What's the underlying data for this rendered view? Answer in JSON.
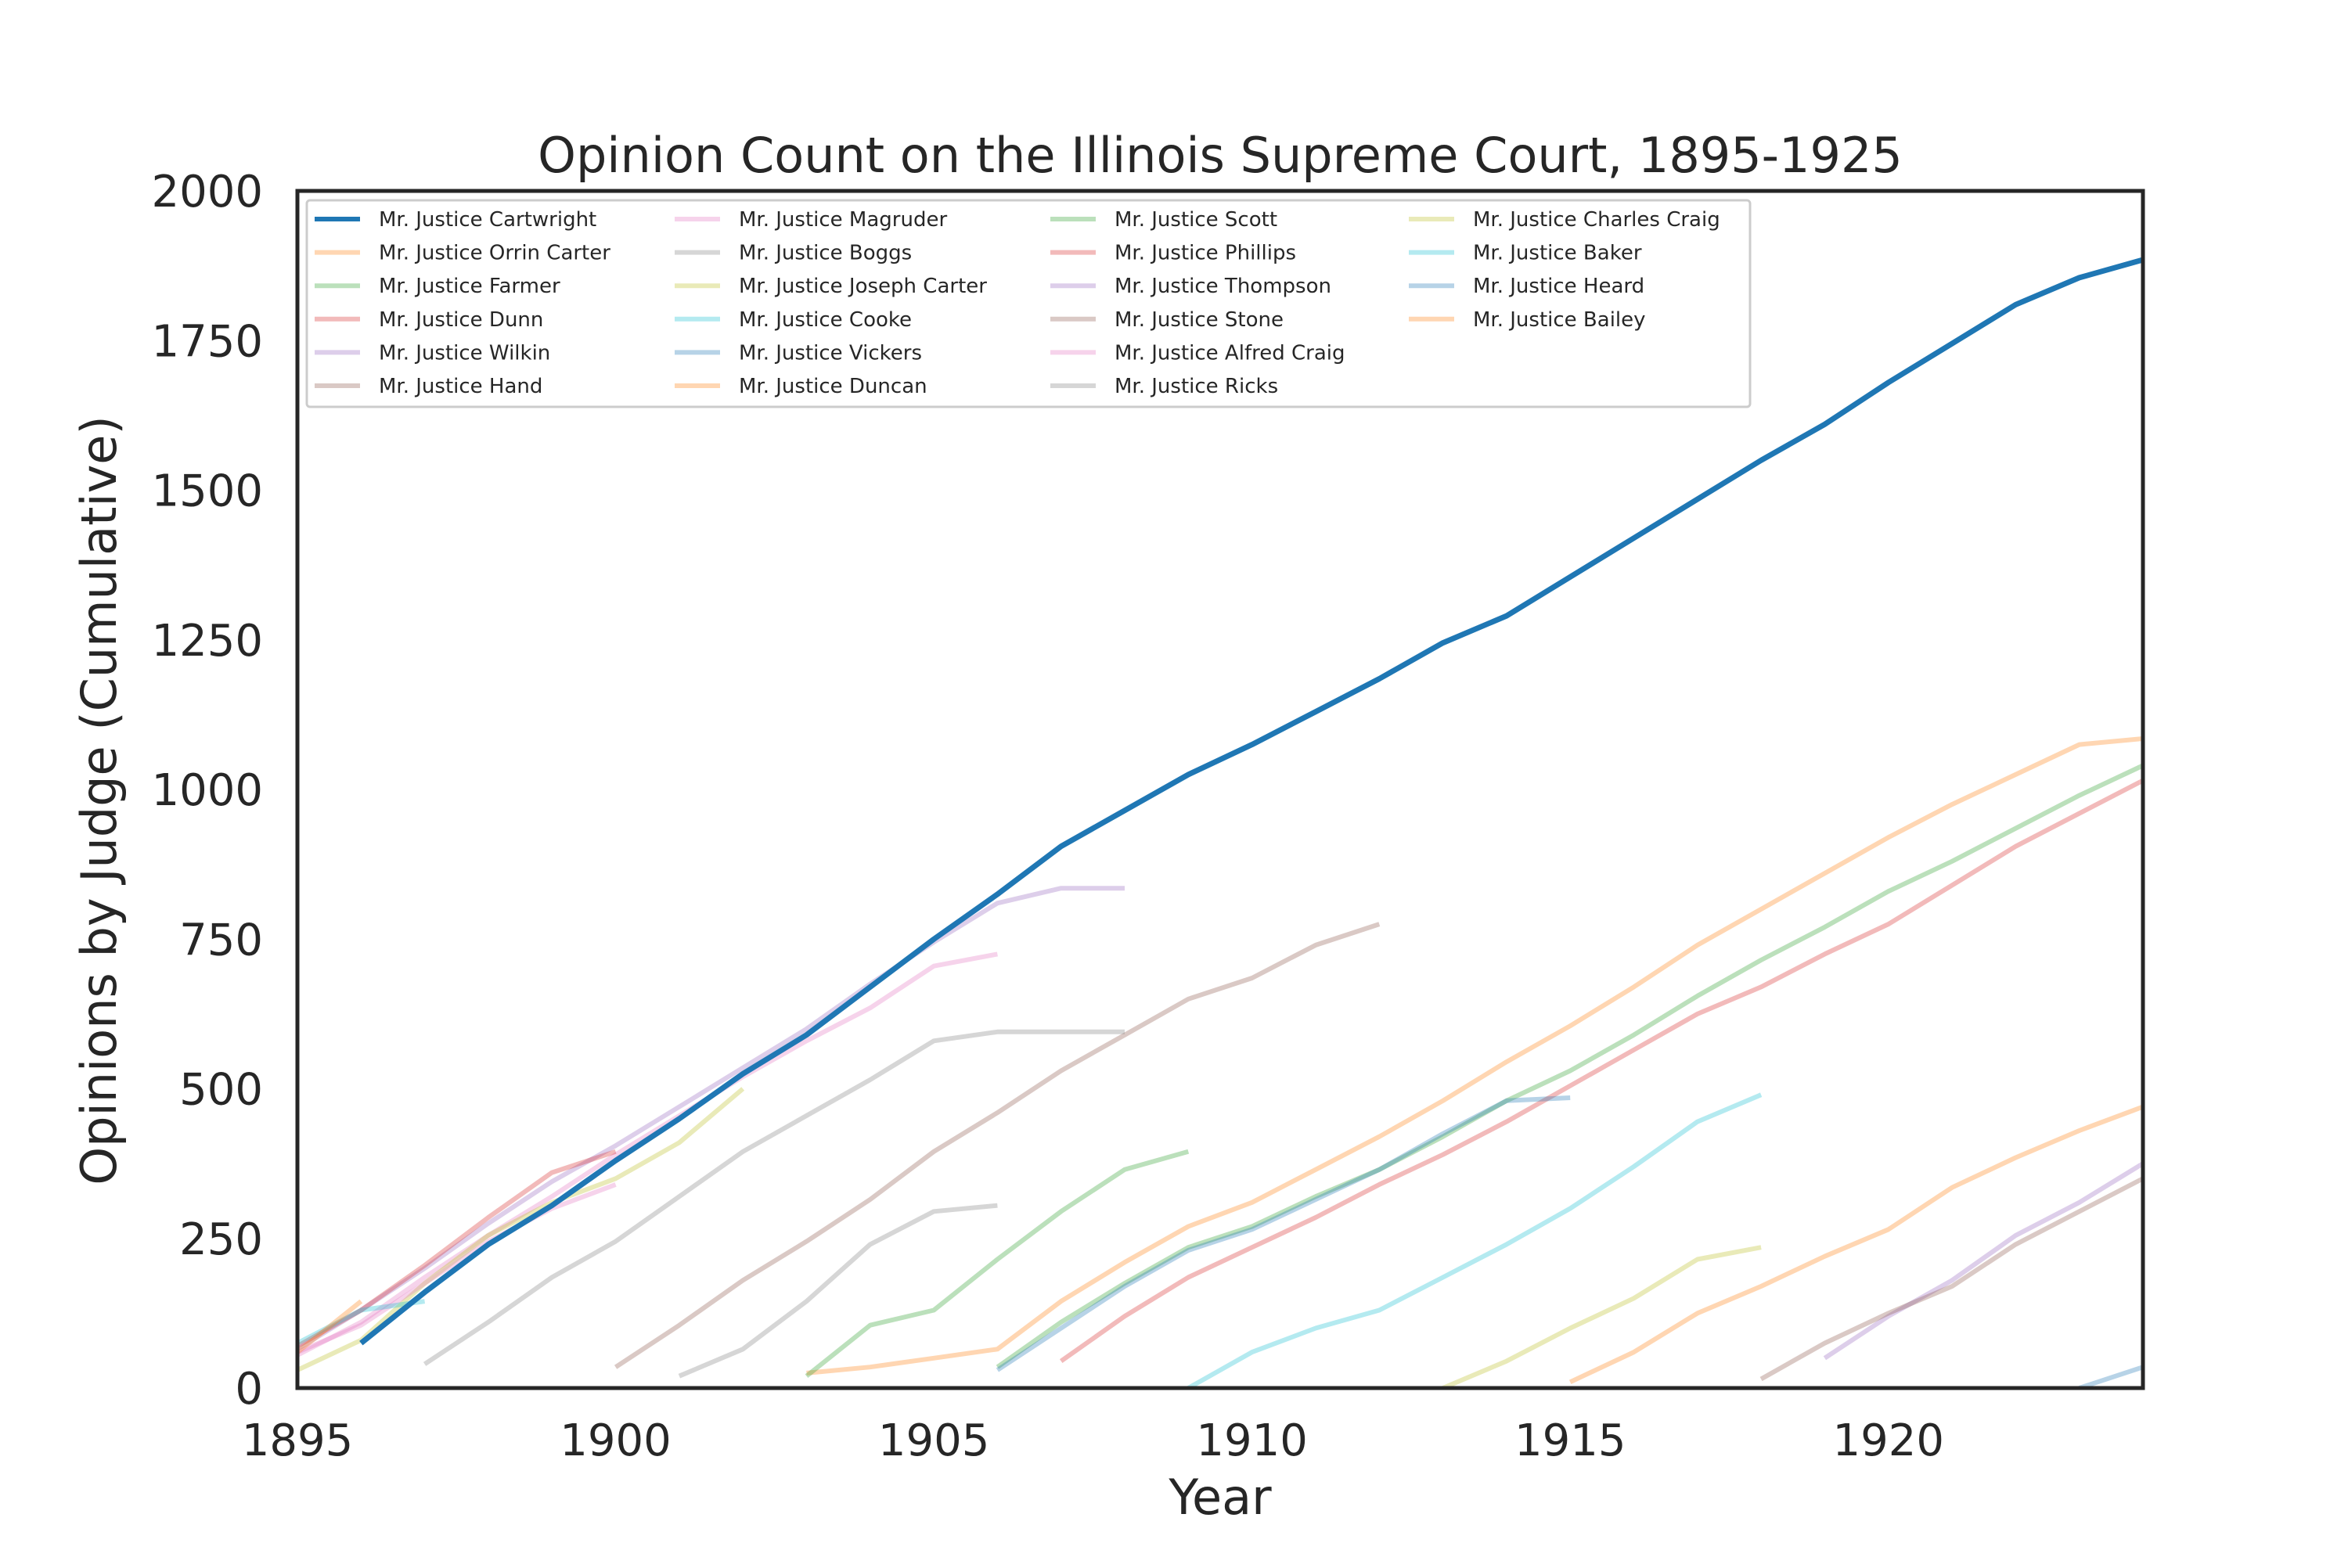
{
  "chart_data": {
    "type": "line",
    "title": "Opinion Count on the Illinois Supreme Court, 1895-1925",
    "xlabel": "Year",
    "ylabel": "Opinions by Judge (Cumulative)",
    "xlim": [
      1895,
      1924
    ],
    "ylim": [
      0,
      2000
    ],
    "x_ticks": [
      "1895",
      "1900",
      "1905",
      "1910",
      "1915",
      "1920"
    ],
    "y_ticks": [
      "0",
      "250",
      "500",
      "750",
      "1000",
      "1250",
      "1500",
      "1750",
      "2000"
    ],
    "grid": false,
    "legend_position": "top-left",
    "legend_columns": 4,
    "series": [
      {
        "name": "Mr. Justice Cartwright",
        "color": "#1f77b4",
        "highlight": true,
        "points": [
          [
            1896,
            75
          ],
          [
            1897,
            160
          ],
          [
            1898,
            240
          ],
          [
            1899,
            305
          ],
          [
            1900,
            380
          ],
          [
            1901,
            450
          ],
          [
            1902,
            525
          ],
          [
            1903,
            590
          ],
          [
            1904,
            670
          ],
          [
            1905,
            750
          ],
          [
            1906,
            825
          ],
          [
            1907,
            905
          ],
          [
            1908,
            965
          ],
          [
            1909,
            1025
          ],
          [
            1910,
            1075
          ],
          [
            1911,
            1130
          ],
          [
            1912,
            1185
          ],
          [
            1913,
            1245
          ],
          [
            1914,
            1290
          ],
          [
            1915,
            1355
          ],
          [
            1916,
            1420
          ],
          [
            1917,
            1485
          ],
          [
            1918,
            1550
          ],
          [
            1919,
            1610
          ],
          [
            1920,
            1680
          ],
          [
            1921,
            1745
          ],
          [
            1922,
            1810
          ],
          [
            1923,
            1855
          ],
          [
            1924,
            1885
          ]
        ]
      },
      {
        "name": "Mr. Justice Orrin Carter",
        "color": "#ff7f0e",
        "points": [
          [
            1903,
            25
          ],
          [
            1904,
            35
          ],
          [
            1905,
            50
          ],
          [
            1906,
            65
          ],
          [
            1907,
            145
          ],
          [
            1908,
            210
          ],
          [
            1909,
            270
          ],
          [
            1910,
            310
          ],
          [
            1911,
            365
          ],
          [
            1912,
            420
          ],
          [
            1913,
            480
          ],
          [
            1914,
            545
          ],
          [
            1915,
            605
          ],
          [
            1916,
            670
          ],
          [
            1917,
            740
          ],
          [
            1918,
            800
          ],
          [
            1919,
            860
          ],
          [
            1920,
            920
          ],
          [
            1921,
            975
          ],
          [
            1922,
            1025
          ],
          [
            1923,
            1075
          ],
          [
            1924,
            1085
          ]
        ]
      },
      {
        "name": "Mr. Justice Farmer",
        "color": "#2ca02c",
        "points": [
          [
            1906,
            35
          ],
          [
            1907,
            110
          ],
          [
            1908,
            175
          ],
          [
            1909,
            235
          ],
          [
            1910,
            270
          ],
          [
            1911,
            320
          ],
          [
            1912,
            365
          ],
          [
            1913,
            420
          ],
          [
            1914,
            480
          ],
          [
            1915,
            530
          ],
          [
            1916,
            590
          ],
          [
            1917,
            655
          ],
          [
            1918,
            715
          ],
          [
            1919,
            770
          ],
          [
            1920,
            830
          ],
          [
            1921,
            880
          ],
          [
            1922,
            935
          ],
          [
            1923,
            990
          ],
          [
            1924,
            1040
          ]
        ]
      },
      {
        "name": "Mr. Justice Dunn",
        "color": "#d62728",
        "points": [
          [
            1907,
            45
          ],
          [
            1908,
            120
          ],
          [
            1909,
            185
          ],
          [
            1910,
            235
          ],
          [
            1911,
            285
          ],
          [
            1912,
            340
          ],
          [
            1913,
            390
          ],
          [
            1914,
            445
          ],
          [
            1915,
            505
          ],
          [
            1916,
            565
          ],
          [
            1917,
            625
          ],
          [
            1918,
            670
          ],
          [
            1919,
            725
          ],
          [
            1920,
            775
          ],
          [
            1921,
            840
          ],
          [
            1922,
            905
          ],
          [
            1923,
            960
          ],
          [
            1924,
            1015
          ]
        ]
      },
      {
        "name": "Mr. Justice Wilkin",
        "color": "#9467bd",
        "points": [
          [
            1895,
            65
          ],
          [
            1896,
            130
          ],
          [
            1897,
            200
          ],
          [
            1898,
            275
          ],
          [
            1899,
            345
          ],
          [
            1900,
            405
          ],
          [
            1901,
            470
          ],
          [
            1902,
            535
          ],
          [
            1903,
            600
          ],
          [
            1904,
            675
          ],
          [
            1905,
            745
          ],
          [
            1906,
            810
          ],
          [
            1907,
            835
          ],
          [
            1908,
            835
          ]
        ]
      },
      {
        "name": "Mr. Justice Hand",
        "color": "#8c564b",
        "points": [
          [
            1900,
            35
          ],
          [
            1901,
            105
          ],
          [
            1902,
            180
          ],
          [
            1903,
            245
          ],
          [
            1904,
            315
          ],
          [
            1905,
            395
          ],
          [
            1906,
            460
          ],
          [
            1907,
            530
          ],
          [
            1908,
            590
          ],
          [
            1909,
            650
          ],
          [
            1910,
            685
          ],
          [
            1911,
            740
          ],
          [
            1912,
            775
          ]
        ]
      },
      {
        "name": "Mr. Justice Magruder",
        "color": "#e377c2",
        "points": [
          [
            1895,
            55
          ],
          [
            1896,
            110
          ],
          [
            1897,
            185
          ],
          [
            1898,
            255
          ],
          [
            1899,
            320
          ],
          [
            1900,
            390
          ],
          [
            1901,
            455
          ],
          [
            1902,
            520
          ],
          [
            1903,
            580
          ],
          [
            1904,
            635
          ],
          [
            1905,
            705
          ],
          [
            1906,
            725
          ]
        ]
      },
      {
        "name": "Mr. Justice Boggs",
        "color": "#7f7f7f",
        "points": [
          [
            1897,
            40
          ],
          [
            1898,
            110
          ],
          [
            1899,
            185
          ],
          [
            1900,
            245
          ],
          [
            1901,
            320
          ],
          [
            1902,
            395
          ],
          [
            1903,
            455
          ],
          [
            1904,
            515
          ],
          [
            1905,
            580
          ],
          [
            1906,
            595
          ],
          [
            1907,
            595
          ],
          [
            1908,
            595
          ]
        ]
      },
      {
        "name": "Mr. Justice Joseph Carter",
        "color": "#bcbd22",
        "points": [
          [
            1895,
            30
          ],
          [
            1896,
            80
          ],
          [
            1897,
            175
          ],
          [
            1898,
            255
          ],
          [
            1899,
            310
          ],
          [
            1900,
            350
          ],
          [
            1901,
            410
          ],
          [
            1902,
            500
          ]
        ]
      },
      {
        "name": "Mr. Justice Cooke",
        "color": "#17becf",
        "points": [
          [
            1909,
            0
          ],
          [
            1910,
            60
          ],
          [
            1911,
            100
          ],
          [
            1912,
            130
          ],
          [
            1913,
            185
          ],
          [
            1914,
            240
          ],
          [
            1915,
            300
          ],
          [
            1916,
            370
          ],
          [
            1917,
            445
          ],
          [
            1918,
            490
          ]
        ]
      },
      {
        "name": "Mr. Justice Vickers",
        "color": "#1f77b4",
        "points": [
          [
            1906,
            30
          ],
          [
            1907,
            100
          ],
          [
            1908,
            170
          ],
          [
            1909,
            230
          ],
          [
            1910,
            265
          ],
          [
            1911,
            315
          ],
          [
            1912,
            365
          ],
          [
            1913,
            425
          ],
          [
            1914,
            480
          ],
          [
            1915,
            485
          ]
        ]
      },
      {
        "name": "Mr. Justice Duncan",
        "color": "#ff7f0e",
        "points": [
          [
            1915,
            10
          ],
          [
            1916,
            60
          ],
          [
            1917,
            125
          ],
          [
            1918,
            170
          ],
          [
            1919,
            220
          ],
          [
            1920,
            265
          ],
          [
            1921,
            335
          ],
          [
            1922,
            385
          ],
          [
            1923,
            430
          ],
          [
            1924,
            470
          ]
        ]
      },
      {
        "name": "Mr. Justice Scott",
        "color": "#2ca02c",
        "points": [
          [
            1903,
            20
          ],
          [
            1904,
            105
          ],
          [
            1905,
            130
          ],
          [
            1906,
            215
          ],
          [
            1907,
            295
          ],
          [
            1908,
            365
          ],
          [
            1909,
            395
          ]
        ]
      },
      {
        "name": "Mr. Justice Phillips",
        "color": "#d62728",
        "points": [
          [
            1895,
            70
          ],
          [
            1896,
            130
          ],
          [
            1897,
            205
          ],
          [
            1898,
            285
          ],
          [
            1899,
            360
          ],
          [
            1900,
            395
          ]
        ]
      },
      {
        "name": "Mr. Justice Thompson",
        "color": "#9467bd",
        "points": [
          [
            1919,
            50
          ],
          [
            1920,
            120
          ],
          [
            1921,
            180
          ],
          [
            1922,
            255
          ],
          [
            1923,
            310
          ],
          [
            1924,
            375
          ]
        ]
      },
      {
        "name": "Mr. Justice Stone",
        "color": "#8c564b",
        "points": [
          [
            1918,
            15
          ],
          [
            1919,
            75
          ],
          [
            1920,
            125
          ],
          [
            1921,
            170
          ],
          [
            1922,
            240
          ],
          [
            1923,
            295
          ],
          [
            1924,
            350
          ]
        ]
      },
      {
        "name": "Mr. Justice Alfred Craig",
        "color": "#e377c2",
        "points": [
          [
            1895,
            60
          ],
          [
            1896,
            105
          ],
          [
            1897,
            175
          ],
          [
            1898,
            245
          ],
          [
            1899,
            300
          ],
          [
            1900,
            340
          ]
        ]
      },
      {
        "name": "Mr. Justice Ricks",
        "color": "#7f7f7f",
        "points": [
          [
            1901,
            20
          ],
          [
            1902,
            65
          ],
          [
            1903,
            145
          ],
          [
            1904,
            240
          ],
          [
            1905,
            295
          ],
          [
            1906,
            305
          ]
        ]
      },
      {
        "name": "Mr. Justice Charles Craig",
        "color": "#bcbd22",
        "points": [
          [
            1913,
            0
          ],
          [
            1914,
            45
          ],
          [
            1915,
            100
          ],
          [
            1916,
            150
          ],
          [
            1917,
            215
          ],
          [
            1918,
            235
          ]
        ]
      },
      {
        "name": "Mr. Justice Baker",
        "color": "#17becf",
        "points": [
          [
            1895,
            75
          ],
          [
            1896,
            130
          ],
          [
            1897,
            145
          ]
        ]
      },
      {
        "name": "Mr. Justice Heard",
        "color": "#1f77b4",
        "points": [
          [
            1923,
            0
          ],
          [
            1924,
            35
          ]
        ]
      },
      {
        "name": "Mr. Justice Bailey",
        "color": "#ff7f0e",
        "points": [
          [
            1895,
            60
          ],
          [
            1896,
            145
          ]
        ]
      }
    ]
  }
}
